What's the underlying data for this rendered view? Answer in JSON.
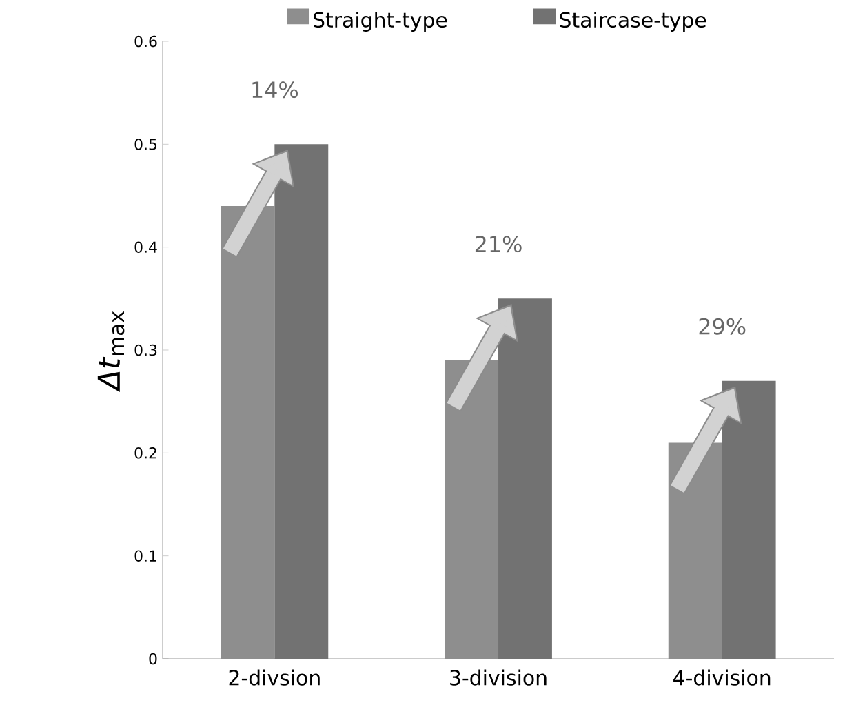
{
  "chart_data": {
    "type": "bar",
    "ylabel": "*Δt*$_{max}$",
    "categories": [
      "2-divsion",
      "3-division",
      "4-division"
    ],
    "series": [
      {
        "name": "Straight-type",
        "color": "#8e8e8e",
        "values": [
          0.44,
          0.29,
          0.21
        ]
      },
      {
        "name": "Staircase-type",
        "color": "#727272",
        "values": [
          0.5,
          0.35,
          0.27
        ]
      }
    ],
    "ylim": [
      0,
      0.6
    ],
    "yticks": [
      0,
      0.1,
      0.2,
      0.3,
      0.4,
      0.5,
      0.6
    ],
    "grid": false,
    "legend": "top",
    "annotations": [
      "14%",
      "21%",
      "29%"
    ]
  }
}
